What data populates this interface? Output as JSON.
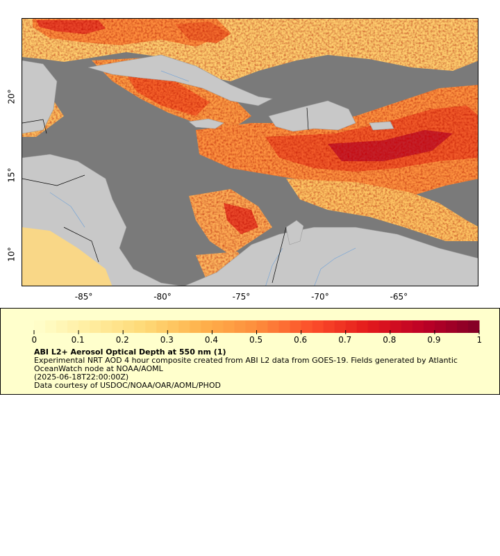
{
  "map": {
    "title": "",
    "x_ticks": [
      {
        "lon": -85,
        "label": "-85°"
      },
      {
        "lon": -80,
        "label": "-80°"
      },
      {
        "lon": -75,
        "label": "-75°"
      },
      {
        "lon": -70,
        "label": "-70°"
      },
      {
        "lon": -65,
        "label": "-65°"
      }
    ],
    "y_ticks": [
      {
        "lat": 20,
        "label": "20°"
      },
      {
        "lat": 15,
        "label": "15°"
      },
      {
        "lat": 10,
        "label": "10°"
      }
    ],
    "lon_range": [
      -89.0,
      -60.0
    ],
    "lat_range": [
      8.0,
      25.0
    ],
    "colors": {
      "ocean_no_data": "#7a7a7a",
      "land": "#c8c8c8",
      "rivers": "#7aa6d6",
      "borders": "#000000"
    }
  },
  "legend": {
    "colorbar_ticks": [
      "0",
      "0.1",
      "0.2",
      "0.3",
      "0.4",
      "0.5",
      "0.6",
      "0.7",
      "0.8",
      "0.9",
      "1"
    ],
    "colorbar_range": [
      0,
      1
    ],
    "colormap": [
      "#ffffcc",
      "#ffeda0",
      "#fed976",
      "#feb24c",
      "#fd8d3c",
      "#fc4e2a",
      "#e31a1c",
      "#bd0026",
      "#800026"
    ],
    "title": "ABI L2+ Aerosol Optical Depth at 550 nm (1)",
    "description": "Experimental NRT AOD 4 hour composite created from ABI L2 data from GOES-19. Fields generated by Atlantic OceanWatch node at NOAA/AOML",
    "date": "(2025-06-18T22:00:00Z)",
    "credit": "Data courtesy of USDOC/NOAA/OAR/AOML/PHOD"
  }
}
